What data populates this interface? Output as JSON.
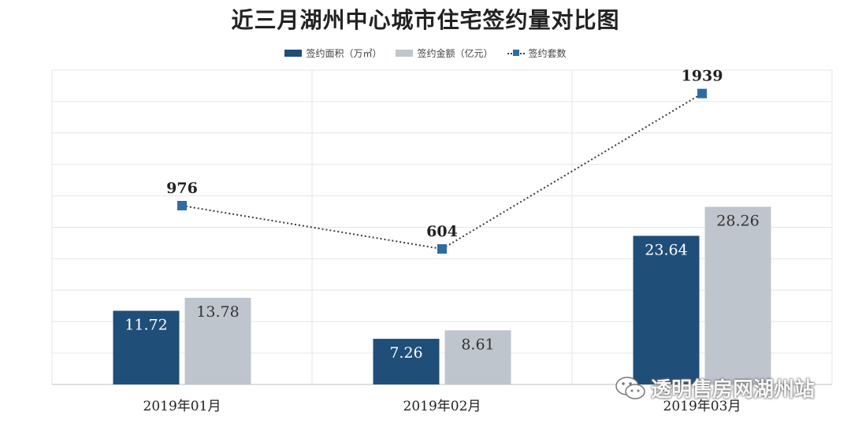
{
  "chart_data": {
    "type": "bar",
    "title": "近三月湖州中心城市住宅签约量对比图",
    "categories": [
      "2019年01月",
      "2019年02月",
      "2019年03月"
    ],
    "series": [
      {
        "name": "签约面积（万㎡）",
        "type": "bar",
        "color": "#1f4e79",
        "values": [
          11.72,
          7.26,
          23.64
        ],
        "labels": [
          "11.72",
          "7.26",
          "23.64"
        ]
      },
      {
        "name": "签约金额（亿元）",
        "type": "bar",
        "color": "#bfc5cc",
        "values": [
          13.78,
          8.61,
          28.26
        ],
        "labels": [
          "13.78",
          "8.61",
          "28.26"
        ]
      },
      {
        "name": "签约套数",
        "type": "line",
        "color": "#2e6da4",
        "values": [
          976,
          604,
          1939
        ],
        "labels": [
          "976",
          "604",
          "1939"
        ]
      }
    ],
    "legend_position": "top",
    "grid": true
  },
  "watermark": {
    "text": "透明售房网湖州站",
    "icon": "wechat-icon"
  }
}
